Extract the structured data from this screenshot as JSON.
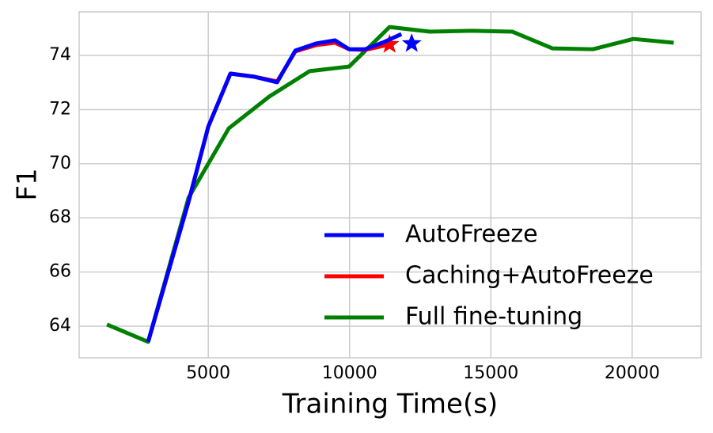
{
  "chart_data": {
    "type": "line",
    "xlabel": "Training Time(s)",
    "ylabel": "F1",
    "xlim": [
      430,
      22440
    ],
    "ylim": [
      62.83,
      75.61
    ],
    "xticks": [
      5000,
      10000,
      15000,
      20000
    ],
    "yticks": [
      64,
      66,
      68,
      70,
      72,
      74
    ],
    "grid": true,
    "legend": "lower right",
    "series": [
      {
        "name": "AutoFreeze",
        "color": "#0000ff",
        "x": [
          2871,
          4300,
          5000,
          5784,
          6596,
          7437,
          8081,
          8809,
          9481,
          9985,
          10546,
          11162,
          11834
        ],
        "values": [
          63.42,
          68.59,
          71.37,
          73.33,
          73.22,
          73.01,
          74.18,
          74.44,
          74.56,
          74.23,
          74.23,
          74.47,
          74.79
        ],
        "final_point": [
          12198,
          74.44
        ]
      },
      {
        "name": "Caching+AutoFreeze",
        "color": "#ff0000",
        "x": [
          2871,
          4300,
          5000,
          5784,
          6596,
          7437,
          8081,
          8809,
          9481,
          9985,
          10546,
          11414
        ],
        "values": [
          63.42,
          68.59,
          71.37,
          73.33,
          73.22,
          73.04,
          74.15,
          74.38,
          74.47,
          74.23,
          74.2,
          74.41
        ],
        "final_point": [
          11414,
          74.41
        ]
      },
      {
        "name": "Full fine-tuning",
        "color": "#008000",
        "x": [
          1414,
          2871,
          4300,
          5728,
          7157,
          8585,
          9985,
          11414,
          12843,
          14328,
          15756,
          17185,
          18613,
          20042,
          21470
        ],
        "values": [
          64.06,
          63.42,
          68.74,
          71.31,
          72.48,
          73.42,
          73.59,
          75.05,
          74.88,
          74.91,
          74.88,
          74.26,
          74.23,
          74.61,
          74.47
        ]
      }
    ]
  }
}
